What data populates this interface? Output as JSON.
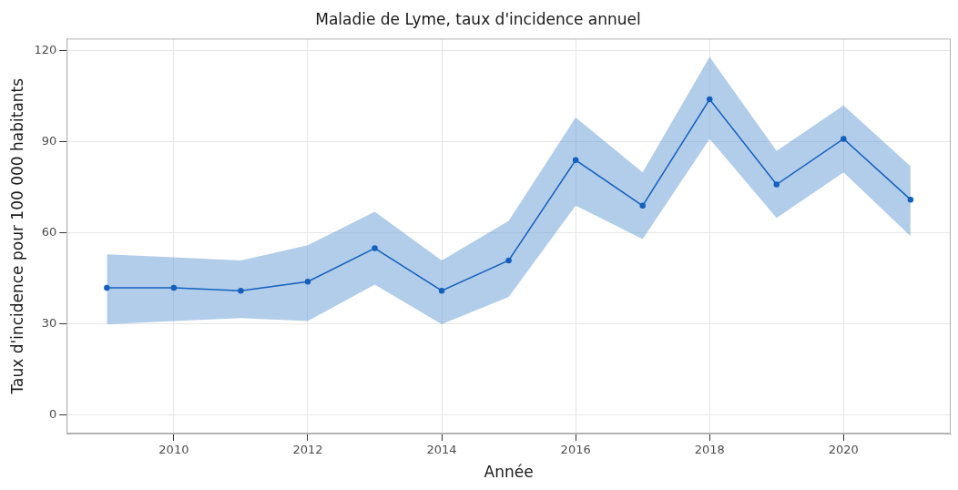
{
  "chart_data": {
    "type": "line",
    "title": "Maladie de Lyme, taux d'incidence annuel",
    "x_label": "Année",
    "y_label": "Taux d'incidence pour 100 000 habitants",
    "x": [
      2009,
      2010,
      2011,
      2012,
      2013,
      2014,
      2015,
      2016,
      2017,
      2018,
      2019,
      2020,
      2021
    ],
    "values": [
      42,
      42,
      41,
      44,
      55,
      41,
      51,
      84,
      69,
      104,
      76,
      91,
      71
    ],
    "ci_lower": [
      30,
      31,
      32,
      31,
      43,
      30,
      39,
      69,
      58,
      91,
      65,
      80,
      59
    ],
    "ci_upper": [
      53,
      52,
      51,
      56,
      67,
      51,
      64,
      98,
      80,
      118,
      87,
      102,
      82
    ],
    "color": "#1560bd",
    "marker": "circle",
    "line_style": "solid",
    "xlim": [
      2008.4,
      2021.6
    ],
    "xticks": [
      2010,
      2012,
      2014,
      2016,
      2018,
      2020
    ],
    "ylim": [
      -6,
      124
    ],
    "yticks": [
      0,
      30,
      60,
      90,
      120
    ],
    "grid": true
  }
}
